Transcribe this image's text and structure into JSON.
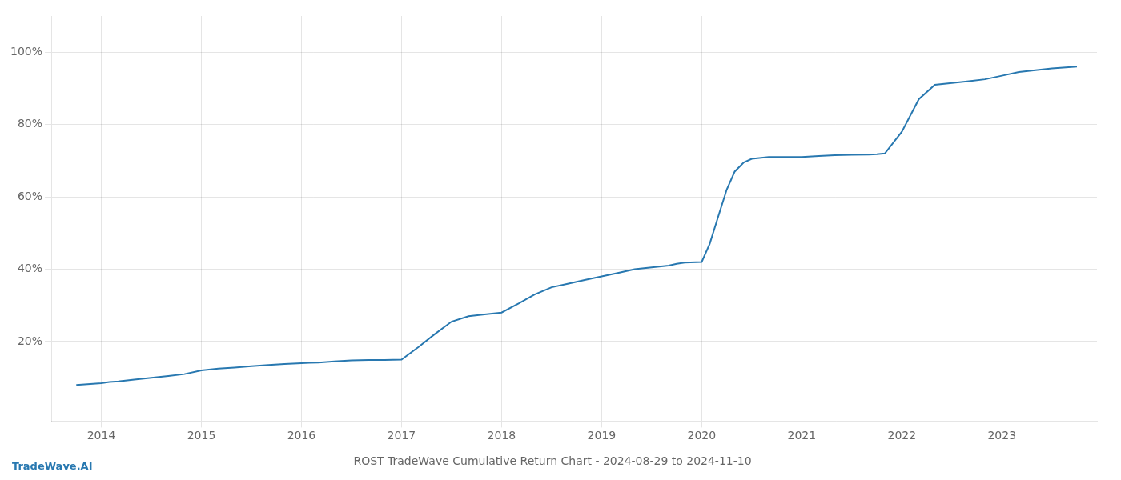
{
  "chart_data": {
    "type": "line",
    "title": "ROST TradeWave Cumulative Return Chart - 2024-08-29 to 2024-11-10",
    "annotations": [
      "TradeWave.AI"
    ],
    "color": "#2878b0",
    "x": [
      2013.75,
      2014.0,
      2014.08,
      2014.17,
      2014.33,
      2014.5,
      2014.67,
      2014.83,
      2015.0,
      2015.17,
      2015.33,
      2015.5,
      2015.67,
      2015.83,
      2016.0,
      2016.08,
      2016.17,
      2016.33,
      2016.5,
      2016.67,
      2016.83,
      2017.0,
      2017.17,
      2017.33,
      2017.5,
      2017.67,
      2017.83,
      2018.0,
      2018.17,
      2018.33,
      2018.5,
      2018.67,
      2018.83,
      2019.0,
      2019.17,
      2019.33,
      2019.5,
      2019.67,
      2019.75,
      2019.83,
      2020.0,
      2020.08,
      2020.17,
      2020.25,
      2020.33,
      2020.42,
      2020.5,
      2020.67,
      2020.83,
      2021.0,
      2021.17,
      2021.33,
      2021.5,
      2021.67,
      2021.75,
      2021.83,
      2022.0,
      2022.17,
      2022.33,
      2022.5,
      2022.67,
      2022.83,
      2023.0,
      2023.17,
      2023.5,
      2023.75
    ],
    "values": [
      0.08,
      0.085,
      0.088,
      0.09,
      0.095,
      0.1,
      0.105,
      0.11,
      0.12,
      0.125,
      0.128,
      0.132,
      0.135,
      0.138,
      0.14,
      0.141,
      0.142,
      0.145,
      0.148,
      0.149,
      0.149,
      0.15,
      0.185,
      0.22,
      0.255,
      0.27,
      0.275,
      0.28,
      0.305,
      0.33,
      0.35,
      0.36,
      0.37,
      0.38,
      0.39,
      0.4,
      0.405,
      0.41,
      0.415,
      0.418,
      0.42,
      0.47,
      0.55,
      0.62,
      0.67,
      0.695,
      0.705,
      0.71,
      0.71,
      0.71,
      0.713,
      0.715,
      0.716,
      0.717,
      0.718,
      0.72,
      0.78,
      0.87,
      0.91,
      0.915,
      0.92,
      0.925,
      0.935,
      0.945,
      0.955,
      0.96
    ],
    "xlim": [
      2013.5,
      2023.95
    ],
    "ylim": [
      -0.02,
      1.1
    ],
    "xticks": [
      2014,
      2015,
      2016,
      2017,
      2018,
      2019,
      2020,
      2021,
      2022,
      2023
    ],
    "yticks": [
      {
        "value": 0.2,
        "label": "20%"
      },
      {
        "value": 0.4,
        "label": "40%"
      },
      {
        "value": 0.6,
        "label": "60%"
      },
      {
        "value": 0.8,
        "label": "80%"
      },
      {
        "value": 1.0,
        "label": "100%"
      }
    ],
    "grid": true
  }
}
